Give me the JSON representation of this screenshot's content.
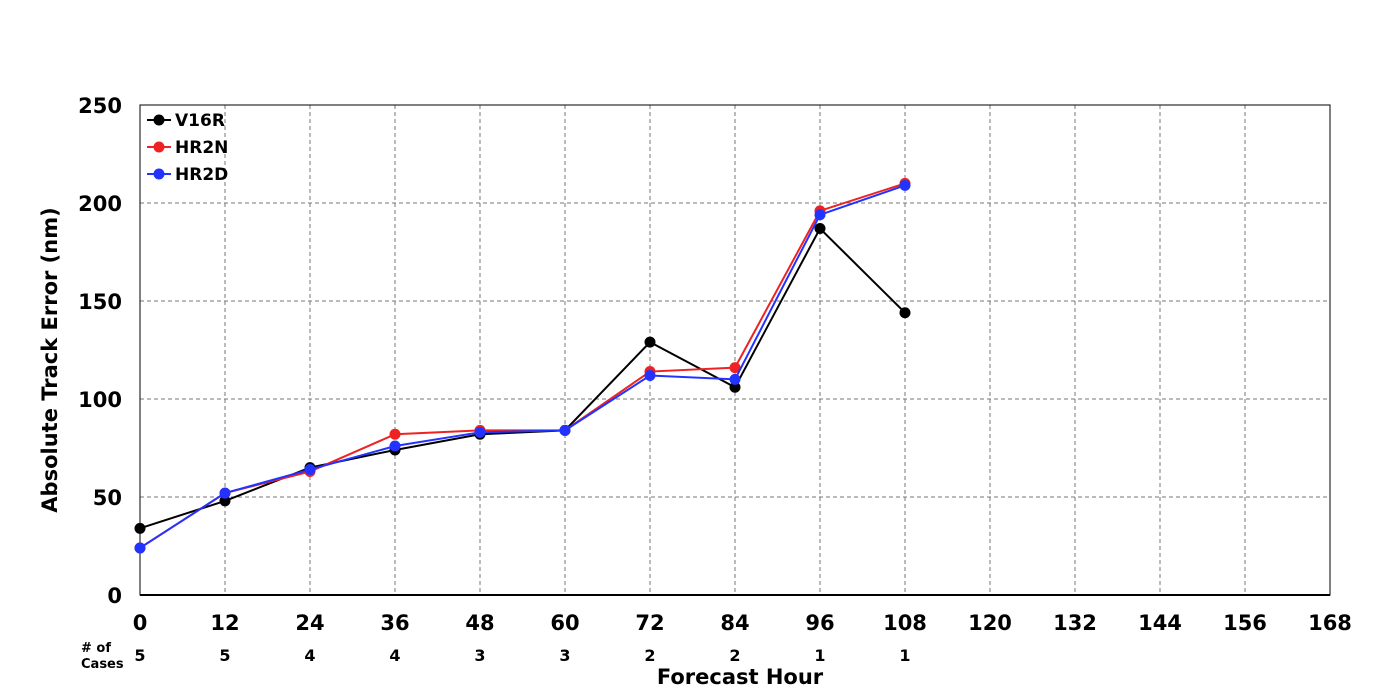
{
  "chart_data": {
    "type": "line",
    "xlabel": "Forecast Hour",
    "ylabel": "Absolute Track Error (nm)",
    "xlim": [
      0,
      168
    ],
    "ylim": [
      0,
      250
    ],
    "x_ticks": [
      "0",
      "12",
      "24",
      "36",
      "48",
      "60",
      "72",
      "84",
      "96",
      "108",
      "120",
      "132",
      "144",
      "156",
      "168"
    ],
    "y_ticks": [
      "0",
      "50",
      "100",
      "150",
      "200",
      "250"
    ],
    "grid": true,
    "legend_position": "top-left",
    "cases_label_line1": "# of",
    "cases_label_line2": "Cases",
    "cases": [
      "5",
      "5",
      "4",
      "4",
      "3",
      "3",
      "2",
      "2",
      "1",
      "1"
    ],
    "series": [
      {
        "name": "V16R",
        "color": "#000000",
        "x": [
          0,
          12,
          24,
          36,
          48,
          60,
          72,
          84,
          96,
          108
        ],
        "values": [
          34,
          48,
          65,
          74,
          82,
          84,
          129,
          106,
          187,
          144
        ]
      },
      {
        "name": "HR2N",
        "color": "#ee2222",
        "x": [
          0,
          12,
          24,
          36,
          48,
          60,
          72,
          84,
          96,
          108
        ],
        "values": [
          24,
          52,
          63,
          82,
          84,
          84,
          114,
          116,
          196,
          210
        ]
      },
      {
        "name": "HR2D",
        "color": "#2233ff",
        "x": [
          0,
          12,
          24,
          36,
          48,
          60,
          72,
          84,
          96,
          108
        ],
        "values": [
          24,
          52,
          64,
          76,
          83,
          84,
          112,
          110,
          194,
          209
        ]
      }
    ]
  }
}
